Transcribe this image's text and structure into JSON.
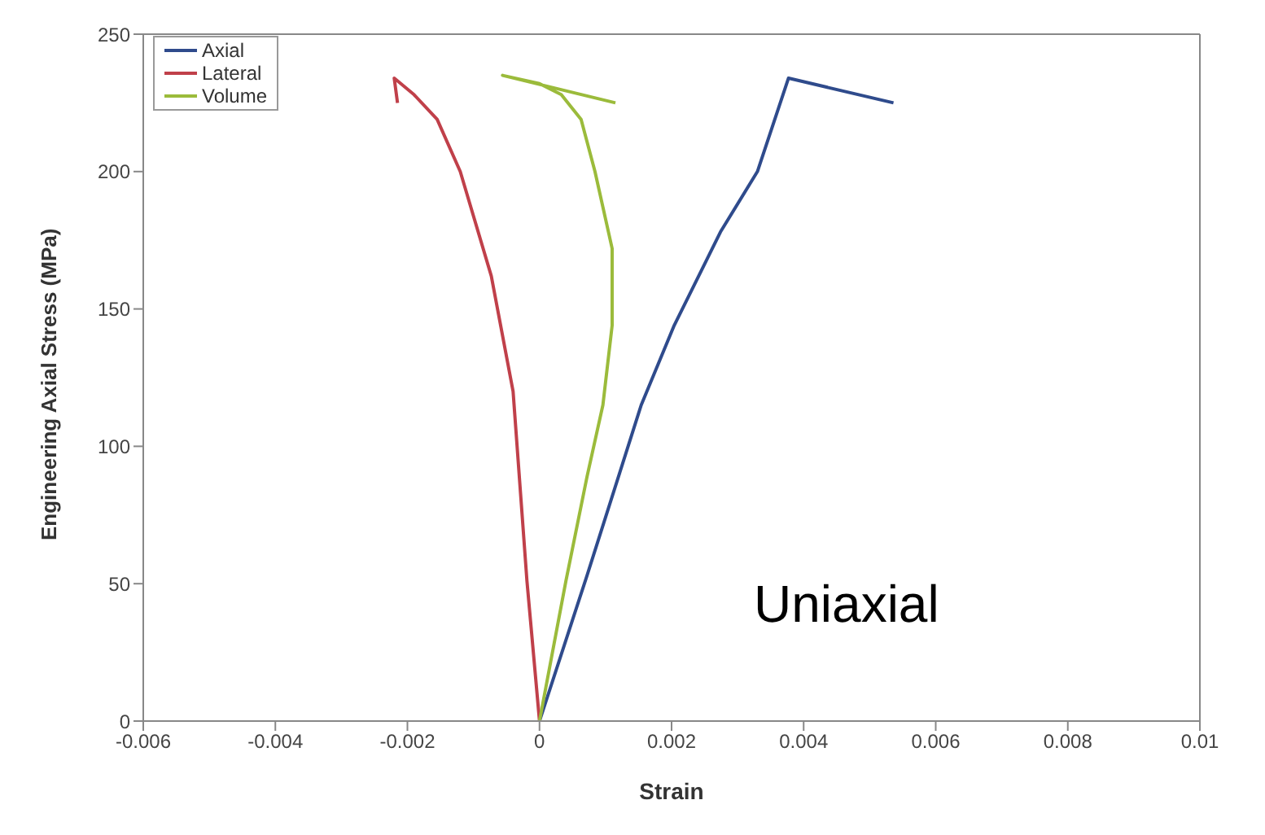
{
  "chart_data": {
    "type": "line",
    "xlabel": "Strain",
    "ylabel": "Engineering Axial Stress (MPa)",
    "xlim": [
      -0.006,
      0.01
    ],
    "xticks": [
      -0.006,
      -0.004,
      -0.002,
      0,
      0.002,
      0.004,
      0.006,
      0.008,
      0.01
    ],
    "ylim": [
      0,
      250
    ],
    "yticks": [
      0,
      50,
      100,
      150,
      200,
      250
    ],
    "legend": "top left",
    "marker": "none",
    "line_style": "solid",
    "annotations": [
      "Uniaxial"
    ],
    "series": [
      {
        "name": "Axial",
        "color": "#2f4b8c",
        "x": [
          0,
          0.00072,
          0.00154,
          0.00204,
          0.00274,
          0.0033,
          0.00377,
          0.00536
        ],
        "values": [
          0,
          53,
          115,
          144,
          178,
          200,
          234,
          225
        ]
      },
      {
        "name": "Lateral",
        "color": "#c0404a",
        "x": [
          0,
          -0.00019,
          -0.0004,
          -0.00073,
          -0.0012,
          -0.00155,
          -0.0019,
          -0.0022,
          -0.00215
        ],
        "values": [
          0,
          51,
          120,
          162,
          200,
          219,
          228,
          234,
          225
        ]
      },
      {
        "name": "Volume",
        "color": "#9bbb3b",
        "x": [
          0,
          0.0004,
          0.00072,
          0.00096,
          0.0011,
          0.0011,
          0.00084,
          0.00063,
          0.00033,
          0,
          -0.00056,
          0.00115
        ],
        "values": [
          0,
          51,
          89,
          115,
          144,
          172,
          200,
          219,
          228,
          232,
          235,
          225
        ]
      }
    ]
  }
}
